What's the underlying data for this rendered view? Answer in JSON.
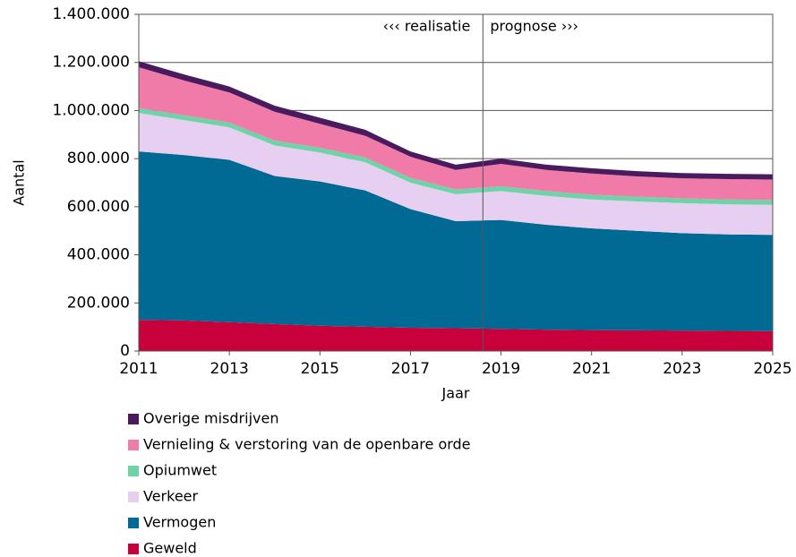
{
  "chart_data": {
    "type": "stacked_area",
    "x_label": "Jaar",
    "y_label": "Aantal",
    "annotations": [
      "‹‹‹ realisatie",
      "prognose ›››"
    ],
    "divider": 2018.6,
    "x": [
      2011,
      2012,
      2013,
      2014,
      2015,
      2016,
      2017,
      2018,
      2019,
      2020,
      2021,
      2022,
      2023,
      2024,
      2025
    ],
    "xlim": [
      2011,
      2025
    ],
    "xticks": [
      2011,
      2013,
      2015,
      2017,
      2019,
      2021,
      2023,
      2025
    ],
    "ylim": [
      0,
      1400000
    ],
    "yticks": [
      0,
      {
        "value": 200000,
        "label": "200.000"
      },
      {
        "value": 400000,
        "label": "400.000"
      },
      {
        "value": 600000,
        "label": "600.000"
      },
      {
        "value": 800000,
        "label": "800.000"
      },
      {
        "value": 1000000,
        "label": "1.000.000"
      },
      {
        "value": 1200000,
        "label": "1.200.000"
      },
      {
        "value": 1400000,
        "label": "1.400.000"
      }
    ],
    "grid": true,
    "series": [
      {
        "name": "Geweld",
        "color": "#c8003c",
        "values": [
          130000,
          127000,
          120000,
          112000,
          105000,
          101000,
          97000,
          95000,
          92000,
          89000,
          87000,
          86000,
          85000,
          84000,
          83000
        ]
      },
      {
        "name": "Vermogen",
        "color": "#006994",
        "values": [
          700000,
          688000,
          675000,
          616000,
          600000,
          567000,
          493000,
          445000,
          453000,
          436000,
          423000,
          414000,
          405000,
          401000,
          400000
        ]
      },
      {
        "name": "Verkeer",
        "color": "#e6cff0",
        "values": [
          160000,
          145000,
          135000,
          127000,
          120000,
          117000,
          110000,
          112000,
          120000,
          120000,
          120000,
          122000,
          125000,
          125000,
          125000
        ]
      },
      {
        "name": "Opiumwet",
        "color": "#6fd3a8",
        "values": [
          20000,
          20000,
          20000,
          20000,
          20000,
          20000,
          20000,
          20000,
          20000,
          20000,
          20000,
          20000,
          20000,
          20000,
          20000
        ]
      },
      {
        "name": "Vernieling & verstoring van de openbare orde",
        "color": "#f07ba8",
        "values": [
          170000,
          145000,
          125000,
          120000,
          100000,
          90000,
          88000,
          81000,
          93000,
          88000,
          88000,
          84000,
          83000,
          85000,
          85000
        ]
      },
      {
        "name": "Overige misdrijven",
        "color": "#4a1a5e",
        "values": [
          25000,
          25000,
          25000,
          25000,
          25000,
          25000,
          22000,
          22000,
          22000,
          22000,
          22000,
          22000,
          22000,
          22000,
          22000
        ]
      }
    ]
  }
}
